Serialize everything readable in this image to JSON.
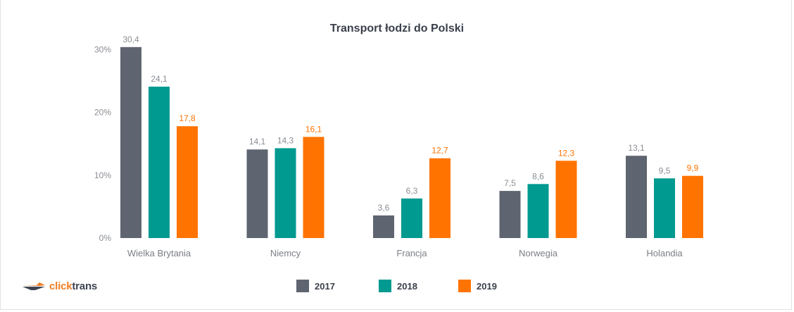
{
  "chart_data": {
    "type": "bar",
    "title": "Transport łodzi do Polski",
    "xlabel": "",
    "ylabel": "",
    "ylim": [
      0,
      30
    ],
    "yticks": [
      {
        "value": 0,
        "label": "0%"
      },
      {
        "value": 10,
        "label": "10%"
      },
      {
        "value": 20,
        "label": "20%"
      },
      {
        "value": 30,
        "label": "30%"
      }
    ],
    "grid": false,
    "legend_position": "bottom",
    "categories": [
      "Wielka Brytania",
      "Niemcy",
      "Francja",
      "Norwegia",
      "Holandia"
    ],
    "series": [
      {
        "name": "2017",
        "color": "#5f6570",
        "label_color": "#8a8d93",
        "values": [
          30.4,
          14.1,
          3.6,
          7.5,
          13.1
        ],
        "labels": [
          "30,4",
          "14,1",
          "3,6",
          "7,5",
          "13,1"
        ]
      },
      {
        "name": "2018",
        "color": "#009a90",
        "label_color": "#8a8d93",
        "values": [
          24.1,
          14.3,
          6.3,
          8.6,
          9.5
        ],
        "labels": [
          "24,1",
          "14,3",
          "6,3",
          "8,6",
          "9,5"
        ]
      },
      {
        "name": "2019",
        "color": "#ff7300",
        "label_color": "#ff7300",
        "values": [
          17.8,
          16.1,
          12.7,
          12.3,
          9.9
        ],
        "labels": [
          "17,8",
          "16,1",
          "12,7",
          "12,3",
          "9,9"
        ]
      }
    ]
  },
  "logo": {
    "part1": "click",
    "part2": "trans",
    "icon": "plane-arrow-icon",
    "colors": {
      "orange": "#ef7d22",
      "dark": "#3d4452"
    }
  },
  "legend": {
    "items": [
      {
        "label": "2017",
        "color": "#5f6570"
      },
      {
        "label": "2018",
        "color": "#009a90"
      },
      {
        "label": "2019",
        "color": "#ff7300"
      }
    ]
  }
}
